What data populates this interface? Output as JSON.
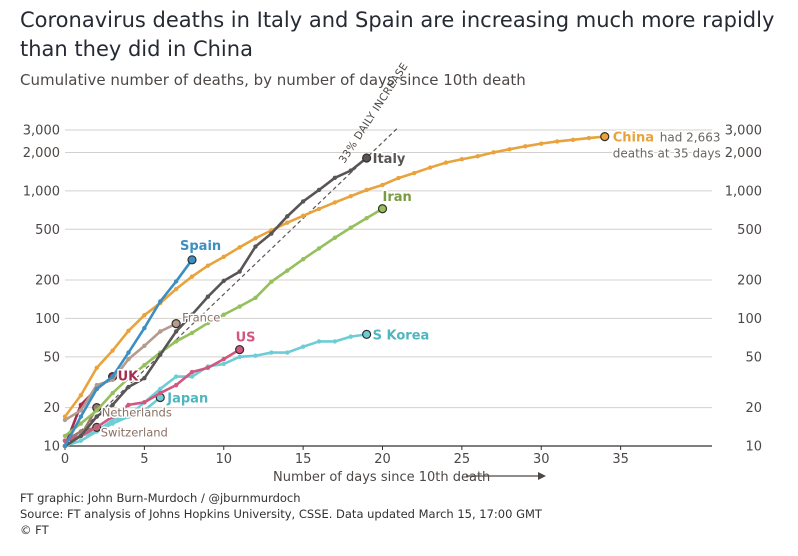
{
  "header": {
    "title": "Coronavirus deaths in Italy and Spain are increasing much more rapidly than they did in China",
    "subtitle": "Cumulative number of deaths, by number of days since 10th death"
  },
  "footer": {
    "credit": "FT graphic: John Burn-Murdoch / @jburnmurdoch",
    "source": "Source: FT analysis of Johns Hopkins University, CSSE. Data updated March 15, 17:00 GMT",
    "copyright": "© FT"
  },
  "chart_data": {
    "type": "line",
    "title": "Coronavirus deaths in Italy and Spain are increasing much more rapidly than they did in China",
    "subtitle": "Cumulative number of deaths, by number of days since 10th death",
    "xlabel": "Number of days since 10th death",
    "ylabel": "",
    "xlim": [
      0,
      40
    ],
    "ylim": [
      10,
      3000
    ],
    "y_scale": "log",
    "x_ticks": [
      0,
      5,
      10,
      15,
      20,
      25,
      30,
      35
    ],
    "y_ticks": [
      10,
      20,
      50,
      100,
      200,
      500,
      1000,
      2000,
      3000
    ],
    "y_tick_labels": [
      "10",
      "20",
      "50",
      "100",
      "200",
      "500",
      "1,000",
      "2,000",
      "3,000"
    ],
    "grid": "horizontal",
    "reference_line": {
      "label": "33% DAILY INCREASE",
      "start": [
        0,
        10
      ],
      "daily_growth": 1.33,
      "end_x": 21
    },
    "annotations": {
      "china_note": {
        "prefix": "had 2,663",
        "line2": "deaths at 35 days"
      }
    },
    "series": [
      {
        "name": "China",
        "color": "#e8a33d",
        "label_color": "#e8a33d",
        "x": [
          0,
          1,
          2,
          3,
          4,
          5,
          6,
          7,
          8,
          9,
          10,
          11,
          12,
          13,
          14,
          15,
          16,
          17,
          18,
          19,
          20,
          21,
          22,
          23,
          24,
          25,
          26,
          27,
          28,
          29,
          30,
          31,
          32,
          33,
          34
        ],
        "y": [
          17,
          25,
          41,
          56,
          80,
          106,
          132,
          170,
          213,
          259,
          304,
          361,
          425,
          490,
          563,
          637,
          722,
          811,
          908,
          1016,
          1113,
          1259,
          1380,
          1523,
          1665,
          1770,
          1868,
          2004,
          2118,
          2236,
          2345,
          2442,
          2515,
          2592,
          2663
        ]
      },
      {
        "name": "Italy",
        "color": "#5a5555",
        "label_color": "#5a5555",
        "x": [
          0,
          1,
          2,
          3,
          4,
          5,
          6,
          7,
          8,
          9,
          10,
          11,
          12,
          13,
          14,
          15,
          16,
          17,
          18,
          19
        ],
        "y": [
          10,
          12,
          17,
          21,
          29,
          34,
          52,
          79,
          107,
          148,
          197,
          233,
          366,
          463,
          631,
          827,
          1016,
          1266,
          1441,
          1809
        ]
      },
      {
        "name": "Spain",
        "color": "#3b8fc2",
        "label_color": "#3b8fc2",
        "x": [
          0,
          1,
          2,
          3,
          4,
          5,
          6,
          7,
          8
        ],
        "y": [
          10,
          17,
          28,
          35,
          54,
          84,
          136,
          195,
          288
        ]
      },
      {
        "name": "Iran",
        "color": "#95c05d",
        "label_color": "#7a9b43",
        "x": [
          0,
          1,
          2,
          3,
          4,
          5,
          6,
          7,
          8,
          9,
          10,
          11,
          12,
          13,
          14,
          15,
          16,
          17,
          18,
          19,
          20
        ],
        "y": [
          12,
          15,
          19,
          26,
          34,
          43,
          54,
          66,
          77,
          92,
          107,
          124,
          145,
          194,
          237,
          291,
          354,
          429,
          514,
          611,
          724
        ]
      },
      {
        "name": "S Korea",
        "color": "#6dcdd6",
        "label_color": "#4fb5bf",
        "x": [
          0,
          1,
          2,
          3,
          4,
          5,
          6,
          7,
          8,
          9,
          10,
          11,
          12,
          13,
          14,
          15,
          16,
          17,
          18,
          19
        ],
        "y": [
          11,
          12,
          13,
          16,
          17,
          22,
          28,
          35,
          35,
          42,
          44,
          50,
          51,
          54,
          54,
          60,
          66,
          66,
          72,
          75
        ]
      },
      {
        "name": "US",
        "color": "#d1577e",
        "label_color": "#d1577e",
        "x": [
          0,
          1,
          2,
          3,
          4,
          5,
          6,
          7,
          8,
          9,
          10,
          11
        ],
        "y": [
          11,
          12,
          14,
          17,
          21,
          22,
          26,
          30,
          38,
          41,
          48,
          57
        ]
      },
      {
        "name": "Japan",
        "color": "#6dcdd6",
        "label_color": "#4fb5bf",
        "x": [
          0,
          1,
          2,
          3,
          4,
          5,
          6
        ],
        "y": [
          10,
          11,
          13,
          15,
          17,
          19,
          24
        ]
      },
      {
        "name": "UK",
        "color": "#a52d4f",
        "label_color": "#a52d4f",
        "x": [
          0,
          1,
          2,
          3
        ],
        "y": [
          10,
          21,
          28,
          35
        ]
      },
      {
        "name": "Netherlands",
        "color": "#9c7b6e",
        "label_color": "#8a7064",
        "x": [
          0,
          1,
          2
        ],
        "y": [
          10,
          12,
          20
        ]
      },
      {
        "name": "France",
        "color": "#b59a8e",
        "label_color": "#8a7064",
        "x": [
          0,
          1,
          2,
          3,
          4,
          5,
          6,
          7
        ],
        "y": [
          16,
          19,
          30,
          33,
          48,
          61,
          79,
          91
        ]
      },
      {
        "name": "Switzerland",
        "color": "#9c7b6e",
        "label_color": "#8a7064",
        "x": [
          0,
          1,
          2
        ],
        "y": [
          11,
          13,
          14
        ]
      }
    ]
  }
}
